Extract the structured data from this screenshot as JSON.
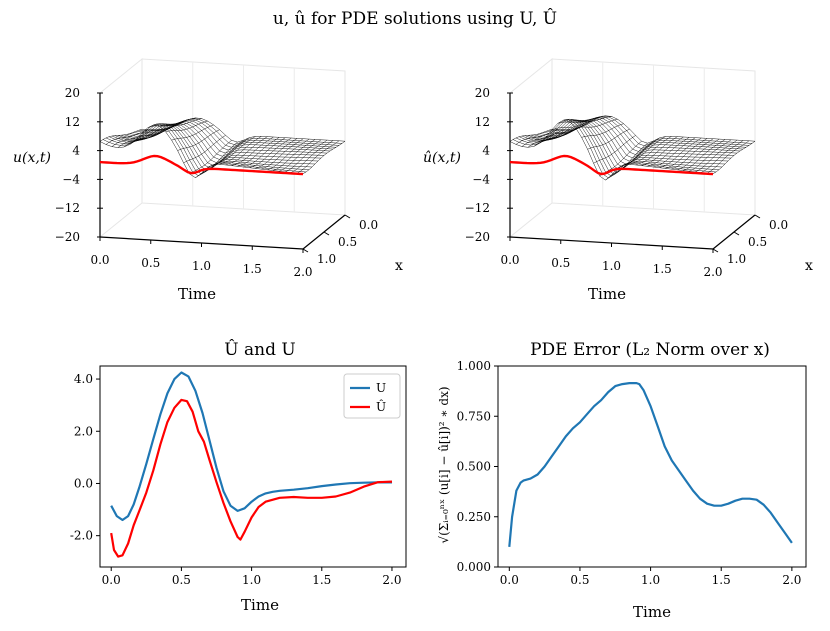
{
  "figure": {
    "suptitle": "u, û for PDE solutions using U, Û"
  },
  "chart_data": [
    {
      "type": "surface3d",
      "id": "u-surface",
      "zlabel": "u(x,t)",
      "xlabel": "Time",
      "ylabel": "x",
      "time_ticks": [
        "0.0",
        "0.5",
        "1.0",
        "1.5",
        "2.0"
      ],
      "x_ticks": [
        "0.0",
        "0.5",
        "1.0"
      ],
      "z_ticks": [
        "20",
        "12",
        "4",
        "−4",
        "−12",
        "−20"
      ],
      "zlim": [
        -20,
        20
      ],
      "boundary_color": "#ff0000",
      "mesh_color": "#000000"
    },
    {
      "type": "surface3d",
      "id": "uhat-surface",
      "zlabel": "û(x,t)",
      "xlabel": "Time",
      "ylabel": "x",
      "time_ticks": [
        "0.0",
        "0.5",
        "1.0",
        "1.5",
        "2.0"
      ],
      "x_ticks": [
        "0.0",
        "0.5",
        "1.0"
      ],
      "z_ticks": [
        "20",
        "12",
        "4",
        "−4",
        "−12",
        "−20"
      ],
      "zlim": [
        -20,
        20
      ],
      "boundary_color": "#ff0000",
      "mesh_color": "#000000"
    },
    {
      "type": "line",
      "id": "control-comparison",
      "title": "Û and U",
      "xlabel": "Time",
      "xlim": [
        -0.08,
        2.1
      ],
      "ylim": [
        -3.2,
        4.5
      ],
      "xticks": [
        "0.0",
        "0.5",
        "1.0",
        "1.5",
        "2.0"
      ],
      "yticks": [
        "4.0",
        "2.0",
        "0.0",
        "-2.0"
      ],
      "legend": "top-right",
      "series": [
        {
          "name": "U",
          "color": "#1f77b4",
          "x": [
            0.0,
            0.04,
            0.08,
            0.12,
            0.16,
            0.2,
            0.25,
            0.3,
            0.35,
            0.4,
            0.45,
            0.5,
            0.55,
            0.6,
            0.65,
            0.7,
            0.75,
            0.8,
            0.85,
            0.9,
            0.95,
            1.0,
            1.05,
            1.1,
            1.15,
            1.2,
            1.3,
            1.4,
            1.5,
            1.6,
            1.7,
            1.8,
            1.9,
            2.0
          ],
          "y": [
            -0.85,
            -1.25,
            -1.4,
            -1.25,
            -0.8,
            -0.15,
            0.75,
            1.7,
            2.65,
            3.45,
            4.0,
            4.25,
            4.1,
            3.55,
            2.7,
            1.65,
            0.6,
            -0.3,
            -0.85,
            -1.05,
            -0.95,
            -0.7,
            -0.5,
            -0.38,
            -0.32,
            -0.28,
            -0.24,
            -0.18,
            -0.1,
            -0.04,
            0.01,
            0.03,
            0.04,
            0.04
          ]
        },
        {
          "name": "Û",
          "color": "#ff0000",
          "x": [
            0.0,
            0.02,
            0.05,
            0.08,
            0.12,
            0.16,
            0.2,
            0.25,
            0.3,
            0.35,
            0.4,
            0.45,
            0.5,
            0.54,
            0.58,
            0.62,
            0.66,
            0.7,
            0.75,
            0.8,
            0.85,
            0.9,
            0.92,
            0.95,
            1.0,
            1.05,
            1.1,
            1.2,
            1.3,
            1.4,
            1.5,
            1.6,
            1.7,
            1.8,
            1.9,
            2.0
          ],
          "y": [
            -1.9,
            -2.55,
            -2.8,
            -2.75,
            -2.3,
            -1.6,
            -1.05,
            -0.35,
            0.5,
            1.5,
            2.35,
            2.9,
            3.2,
            3.15,
            2.75,
            2.0,
            1.6,
            0.9,
            0.05,
            -0.75,
            -1.45,
            -2.05,
            -2.15,
            -1.85,
            -1.3,
            -0.9,
            -0.7,
            -0.55,
            -0.52,
            -0.55,
            -0.55,
            -0.5,
            -0.35,
            -0.12,
            0.05,
            0.07
          ]
        }
      ]
    },
    {
      "type": "line",
      "id": "pde-error",
      "title": "PDE Error (L₂ Norm over x)",
      "xlabel": "Time",
      "ylabel": "√(Σᵢ₌₀ⁿˣ (u[i] − û[i])² ∗ dx)",
      "xlim": [
        -0.08,
        2.1
      ],
      "ylim": [
        0.0,
        1.0
      ],
      "xticks": [
        "0.0",
        "0.5",
        "1.0",
        "1.5",
        "2.0"
      ],
      "yticks": [
        "1.000",
        "0.750",
        "0.500",
        "0.250",
        "0.000"
      ],
      "series": [
        {
          "color": "#1f77b4",
          "x": [
            0.0,
            0.02,
            0.05,
            0.08,
            0.1,
            0.15,
            0.2,
            0.25,
            0.3,
            0.35,
            0.4,
            0.45,
            0.5,
            0.55,
            0.6,
            0.65,
            0.7,
            0.75,
            0.8,
            0.85,
            0.9,
            0.92,
            0.95,
            1.0,
            1.05,
            1.1,
            1.15,
            1.2,
            1.25,
            1.3,
            1.35,
            1.4,
            1.45,
            1.5,
            1.55,
            1.6,
            1.65,
            1.7,
            1.75,
            1.8,
            1.85,
            1.9,
            1.95,
            2.0
          ],
          "y": [
            0.1,
            0.25,
            0.38,
            0.42,
            0.43,
            0.44,
            0.46,
            0.5,
            0.55,
            0.6,
            0.65,
            0.69,
            0.72,
            0.76,
            0.8,
            0.83,
            0.87,
            0.9,
            0.91,
            0.915,
            0.915,
            0.91,
            0.88,
            0.8,
            0.7,
            0.6,
            0.53,
            0.48,
            0.43,
            0.38,
            0.34,
            0.315,
            0.305,
            0.305,
            0.315,
            0.33,
            0.34,
            0.34,
            0.335,
            0.31,
            0.27,
            0.22,
            0.17,
            0.12
          ]
        }
      ]
    }
  ]
}
